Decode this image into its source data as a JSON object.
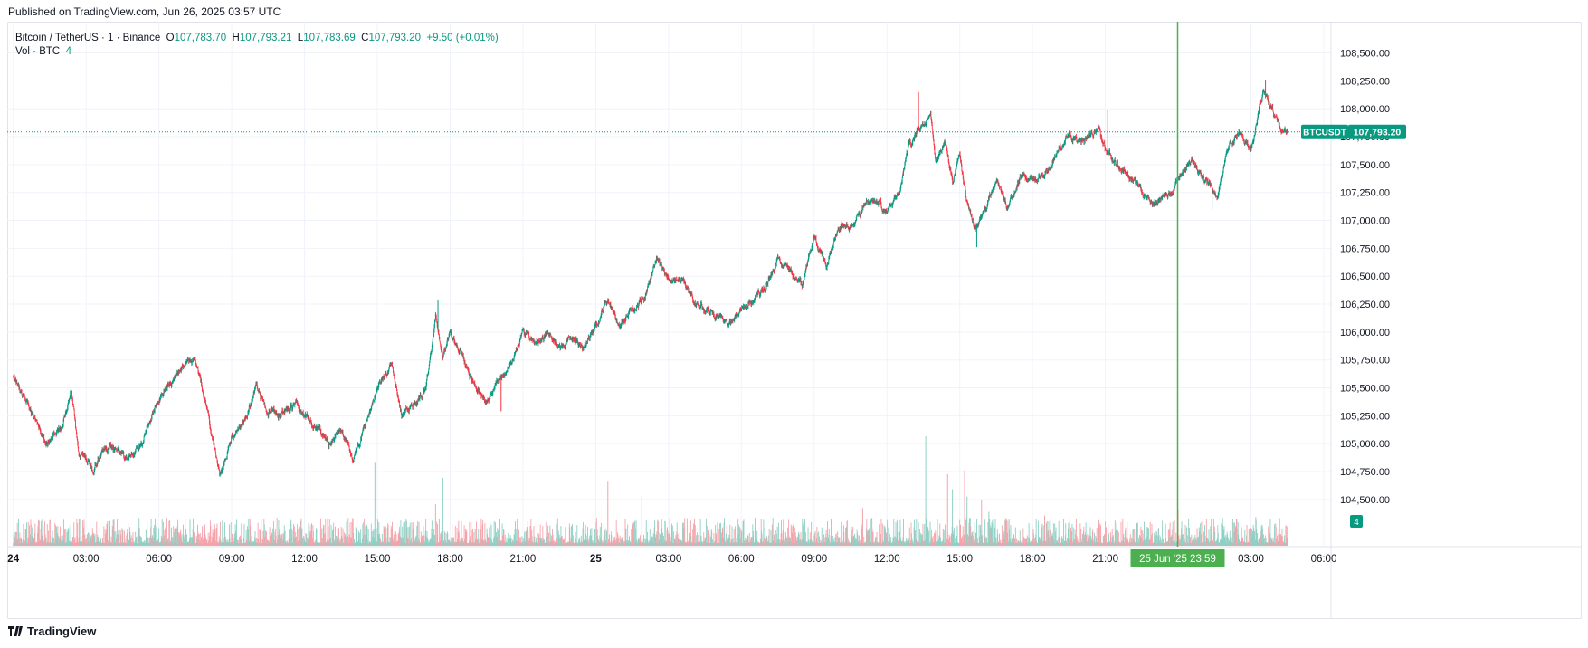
{
  "header": {
    "published": "Published on TradingView.com, Jun 26, 2025 03:57 UTC"
  },
  "legend": {
    "symbol": "Bitcoin / TetherUS · 1 · Binance",
    "o_label": "O",
    "o": "107,783.70",
    "h_label": "H",
    "h": "107,793.21",
    "l_label": "L",
    "l": "107,783.69",
    "c_label": "C",
    "c": "107,793.20",
    "change": "+9.50 (+0.01%)",
    "vol_label": "Vol · BTC",
    "vol": "4"
  },
  "footer": {
    "brand": "TradingView"
  },
  "colors": {
    "up": "#089981",
    "down": "#f23645",
    "cursor": "#4caf50",
    "grid": "#f0f3fa",
    "price_line": "#089981"
  },
  "chart_data": {
    "type": "candlestick",
    "symbol": "BTCUSDT",
    "interval": "1",
    "last_price": 107793.2,
    "last_price_label": "107,793.20",
    "price_tag_name": "BTCUSDT",
    "volume_tag": "4",
    "cursor_label": "25 Jun '25  23:59",
    "cursor_time": 47.98,
    "y_range": [
      104280,
      108780
    ],
    "y_ticks": [
      104500,
      104750,
      105000,
      105250,
      105500,
      105750,
      106000,
      106250,
      106500,
      106750,
      107000,
      107250,
      107500,
      107750,
      108000,
      108250,
      108500
    ],
    "y_tick_labels": [
      "104,500.00",
      "104,750.00",
      "105,000.00",
      "105,250.00",
      "105,500.00",
      "105,750.00",
      "106,000.00",
      "106,250.00",
      "106,500.00",
      "106,750.00",
      "107,000.00",
      "107,250.00",
      "107,500.00",
      "107,750.00",
      "108,000.00",
      "108,250.00",
      "108,500.00"
    ],
    "x_range": [
      -0.25,
      54.3
    ],
    "x_ticks": [
      {
        "t": 0,
        "label": "24",
        "bold": true
      },
      {
        "t": 3,
        "label": "03:00"
      },
      {
        "t": 6,
        "label": "06:00"
      },
      {
        "t": 9,
        "label": "09:00"
      },
      {
        "t": 12,
        "label": "12:00"
      },
      {
        "t": 15,
        "label": "15:00"
      },
      {
        "t": 18,
        "label": "18:00"
      },
      {
        "t": 21,
        "label": "21:00"
      },
      {
        "t": 24,
        "label": "25",
        "bold": true
      },
      {
        "t": 27,
        "label": "03:00"
      },
      {
        "t": 30,
        "label": "06:00"
      },
      {
        "t": 33,
        "label": "09:00"
      },
      {
        "t": 36,
        "label": "12:00"
      },
      {
        "t": 39,
        "label": "15:00"
      },
      {
        "t": 42,
        "label": "18:00"
      },
      {
        "t": 45,
        "label": "21:00"
      },
      {
        "t": 51,
        "label": "03:00"
      },
      {
        "t": 54,
        "label": "06:00"
      }
    ],
    "series_close": [
      [
        0.0,
        105600
      ],
      [
        0.7,
        105300
      ],
      [
        1.3,
        105000
      ],
      [
        2.0,
        105150
      ],
      [
        2.4,
        105500
      ],
      [
        2.7,
        104900
      ],
      [
        3.3,
        104800
      ],
      [
        4.0,
        105000
      ],
      [
        4.7,
        104850
      ],
      [
        5.3,
        105000
      ],
      [
        5.8,
        105300
      ],
      [
        6.3,
        105500
      ],
      [
        7.0,
        105700
      ],
      [
        7.5,
        105750
      ],
      [
        8.0,
        105300
      ],
      [
        8.5,
        104700
      ],
      [
        9.0,
        105050
      ],
      [
        9.5,
        105200
      ],
      [
        10.0,
        105500
      ],
      [
        10.5,
        105300
      ],
      [
        11.0,
        105250
      ],
      [
        11.7,
        105350
      ],
      [
        12.3,
        105200
      ],
      [
        13.0,
        105000
      ],
      [
        13.5,
        105150
      ],
      [
        14.0,
        104850
      ],
      [
        14.5,
        105200
      ],
      [
        15.0,
        105500
      ],
      [
        15.6,
        105700
      ],
      [
        16.0,
        105250
      ],
      [
        16.5,
        105350
      ],
      [
        17.0,
        105500
      ],
      [
        17.4,
        106150
      ],
      [
        17.7,
        105800
      ],
      [
        18.0,
        106000
      ],
      [
        18.5,
        105800
      ],
      [
        19.0,
        105500
      ],
      [
        19.5,
        105400
      ],
      [
        20.0,
        105550
      ],
      [
        20.5,
        105700
      ],
      [
        21.0,
        106000
      ],
      [
        21.5,
        105900
      ],
      [
        22.0,
        106000
      ],
      [
        22.5,
        105850
      ],
      [
        23.0,
        105950
      ],
      [
        23.5,
        105850
      ],
      [
        24.0,
        106050
      ],
      [
        24.5,
        106300
      ],
      [
        25.0,
        106050
      ],
      [
        25.5,
        106200
      ],
      [
        26.0,
        106300
      ],
      [
        26.5,
        106650
      ],
      [
        27.0,
        106450
      ],
      [
        27.5,
        106500
      ],
      [
        28.0,
        106300
      ],
      [
        28.5,
        106200
      ],
      [
        29.0,
        106150
      ],
      [
        29.5,
        106100
      ],
      [
        30.0,
        106200
      ],
      [
        30.5,
        106300
      ],
      [
        31.0,
        106400
      ],
      [
        31.5,
        106650
      ],
      [
        32.0,
        106550
      ],
      [
        32.5,
        106400
      ],
      [
        33.0,
        106850
      ],
      [
        33.5,
        106600
      ],
      [
        34.0,
        106950
      ],
      [
        34.5,
        106950
      ],
      [
        35.0,
        107100
      ],
      [
        35.5,
        107200
      ],
      [
        36.0,
        107050
      ],
      [
        36.5,
        107250
      ],
      [
        36.9,
        107650
      ],
      [
        37.3,
        107800
      ],
      [
        37.8,
        107950
      ],
      [
        38.0,
        107500
      ],
      [
        38.4,
        107700
      ],
      [
        38.7,
        107350
      ],
      [
        39.0,
        107600
      ],
      [
        39.3,
        107150
      ],
      [
        39.6,
        106950
      ],
      [
        40.0,
        107050
      ],
      [
        40.5,
        107350
      ],
      [
        41.0,
        107100
      ],
      [
        41.5,
        107400
      ],
      [
        42.0,
        107350
      ],
      [
        42.5,
        107400
      ],
      [
        43.0,
        107600
      ],
      [
        43.5,
        107750
      ],
      [
        44.0,
        107700
      ],
      [
        44.7,
        107800
      ],
      [
        45.0,
        107650
      ],
      [
        45.5,
        107500
      ],
      [
        46.0,
        107400
      ],
      [
        46.5,
        107250
      ],
      [
        47.0,
        107150
      ],
      [
        47.5,
        107200
      ],
      [
        48.0,
        107350
      ],
      [
        48.5,
        107550
      ],
      [
        49.0,
        107400
      ],
      [
        49.6,
        107200
      ],
      [
        50.0,
        107650
      ],
      [
        50.5,
        107750
      ],
      [
        51.0,
        107650
      ],
      [
        51.5,
        108150
      ],
      [
        52.0,
        107950
      ],
      [
        52.2,
        107850
      ],
      [
        52.5,
        107790
      ]
    ],
    "spikes": [
      [
        17.5,
        106290
      ],
      [
        20.1,
        105290
      ],
      [
        33.5,
        106560
      ],
      [
        37.3,
        108150
      ],
      [
        39.7,
        106760
      ],
      [
        45.1,
        107990
      ],
      [
        49.4,
        107100
      ],
      [
        51.6,
        108260
      ]
    ],
    "volume_axis_max": 180,
    "volume_spikes": [
      [
        14.9,
        110
      ],
      [
        17.4,
        55
      ],
      [
        17.7,
        90
      ],
      [
        24.5,
        85
      ],
      [
        25.9,
        66
      ],
      [
        35.0,
        50
      ],
      [
        37.6,
        145
      ],
      [
        38.5,
        95
      ],
      [
        38.7,
        75
      ],
      [
        39.2,
        100
      ],
      [
        39.3,
        65
      ],
      [
        39.9,
        60
      ],
      [
        40.2,
        45
      ],
      [
        42.5,
        40
      ],
      [
        44.7,
        60
      ],
      [
        48.0,
        48
      ],
      [
        51.2,
        38
      ]
    ]
  }
}
